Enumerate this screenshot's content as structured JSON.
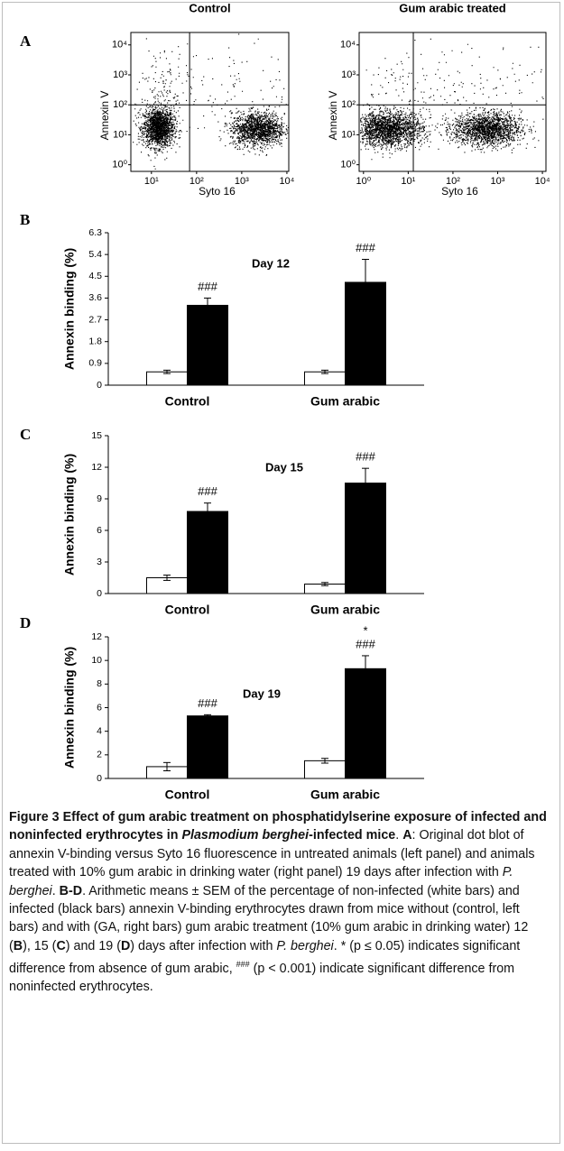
{
  "panel_labels": [
    "A",
    "B",
    "C",
    "D"
  ],
  "chart_data": [
    {
      "type": "dotplot",
      "title": "Control",
      "xlabel": "Syto 16",
      "ylabel": "Annexin V",
      "log": true,
      "xlim": [
        3.5,
        11000
      ],
      "ylim": [
        0.6,
        26000
      ],
      "xticks": [
        {
          "value": 10,
          "label": "10¹"
        },
        {
          "value": 100,
          "label": "10²"
        },
        {
          "value": 1000,
          "label": "10³"
        },
        {
          "value": 10000,
          "label": "10⁴"
        }
      ],
      "yticks": [
        {
          "value": 1,
          "label": "10⁰"
        },
        {
          "value": 10,
          "label": "10¹"
        },
        {
          "value": 100,
          "label": "10²"
        },
        {
          "value": 1000,
          "label": "10³"
        },
        {
          "value": 10000,
          "label": "10⁴"
        }
      ],
      "gate_x": 70,
      "gate_y": 100,
      "color": "#000000"
    },
    {
      "type": "dotplot",
      "title": "Gum arabic treated",
      "xlabel": "Syto 16",
      "ylabel": "Annexin V",
      "log": true,
      "xlim": [
        0.8,
        12000
      ],
      "ylim": [
        0.6,
        26000
      ],
      "xticks": [
        {
          "value": 1,
          "label": "10⁰"
        },
        {
          "value": 10,
          "label": "10¹"
        },
        {
          "value": 100,
          "label": "10²"
        },
        {
          "value": 1000,
          "label": "10³"
        },
        {
          "value": 10000,
          "label": "10⁴"
        }
      ],
      "yticks": [
        {
          "value": 1,
          "label": "10⁰"
        },
        {
          "value": 10,
          "label": "10¹"
        },
        {
          "value": 100,
          "label": "10²"
        },
        {
          "value": 1000,
          "label": "10³"
        },
        {
          "value": 10000,
          "label": "10⁴"
        }
      ],
      "gate_x": 13,
      "gate_y": 100,
      "color": "#000000"
    },
    {
      "type": "bar",
      "subtitle": "Day 12",
      "ylabel": "Annexin binding (%)",
      "categories": [
        "Control",
        "Gum arabic"
      ],
      "series": [
        {
          "color": "#ffffff",
          "values": [
            0.55,
            0.55
          ],
          "errors": [
            0.07,
            0.07
          ]
        },
        {
          "color": "#000000",
          "values": [
            3.3,
            4.25
          ],
          "errors": [
            0.3,
            0.95
          ]
        }
      ],
      "ylim": [
        0,
        6.3
      ],
      "yticks": [
        0,
        0.9,
        1.8,
        2.7,
        3.6,
        4.5,
        5.4,
        6.3
      ],
      "annotations": [
        {
          "text": "###",
          "series": 1,
          "index": 0
        },
        {
          "text": "###",
          "series": 1,
          "index": 1
        }
      ]
    },
    {
      "type": "bar",
      "subtitle": "Day 15",
      "ylabel": "Annexin binding (%)",
      "categories": [
        "Control",
        "Gum arabic"
      ],
      "series": [
        {
          "color": "#ffffff",
          "values": [
            1.5,
            0.9
          ],
          "errors": [
            0.25,
            0.15
          ]
        },
        {
          "color": "#000000",
          "values": [
            7.8,
            10.5
          ],
          "errors": [
            0.8,
            1.4
          ]
        }
      ],
      "ylim": [
        0,
        15
      ],
      "yticks": [
        0,
        3,
        6,
        9,
        12,
        15
      ],
      "annotations": [
        {
          "text": "###",
          "series": 1,
          "index": 0
        },
        {
          "text": "###",
          "series": 1,
          "index": 1
        }
      ]
    },
    {
      "type": "bar",
      "subtitle": "Day 19",
      "ylabel": "Annexin binding (%)",
      "categories": [
        "Control",
        "Gum arabic"
      ],
      "series": [
        {
          "color": "#ffffff",
          "values": [
            1.0,
            1.5
          ],
          "errors": [
            0.35,
            0.2
          ]
        },
        {
          "color": "#000000",
          "values": [
            5.3,
            9.3
          ],
          "errors": [
            0.1,
            1.1
          ]
        }
      ],
      "ylim": [
        0,
        12
      ],
      "yticks": [
        0,
        2,
        4,
        6,
        8,
        10,
        12
      ],
      "annotations": [
        {
          "text": "###",
          "series": 1,
          "index": 0
        },
        {
          "text": "###",
          "series": 1,
          "index": 1
        },
        {
          "text": "*",
          "series": 1,
          "index": 1
        }
      ]
    }
  ],
  "caption": {
    "runs": [
      {
        "text": "Figure 3 Effect of gum arabic treatment on phosphatidylserine exposure of infected and noninfected erythrocytes in ",
        "style": "b"
      },
      {
        "text": "Plasmodium berghei",
        "style": "bi"
      },
      {
        "text": "-infected mice",
        "style": "b"
      },
      {
        "text": ". ",
        "style": "n"
      },
      {
        "text": "A",
        "style": "b"
      },
      {
        "text": ": Original dot blot of annexin V-binding versus Syto 16 fluorescence in untreated animals (left panel) and animals treated with 10% gum arabic in drinking water (right panel) 19 days after infection with ",
        "style": "n"
      },
      {
        "text": "P. berghei",
        "style": "i"
      },
      {
        "text": ". ",
        "style": "n"
      },
      {
        "text": "B-D",
        "style": "b"
      },
      {
        "text": ". Arithmetic means ± SEM of the percentage of non-infected (white bars) and infected (black bars) annexin V-binding erythrocytes drawn from mice without (control, left bars) and with (GA, right bars) gum arabic treatment (10% gum arabic in drinking water) 12 (",
        "style": "n"
      },
      {
        "text": "B",
        "style": "b"
      },
      {
        "text": "), 15 (",
        "style": "n"
      },
      {
        "text": "C",
        "style": "b"
      },
      {
        "text": ") and 19 (",
        "style": "n"
      },
      {
        "text": "D",
        "style": "b"
      },
      {
        "text": ") days after infection with ",
        "style": "n"
      },
      {
        "text": "P. berghei",
        "style": "i"
      },
      {
        "text": ". * (p ≤ 0.05) indicates significant difference from absence of gum arabic, ",
        "style": "n"
      },
      {
        "text": "###",
        "style": "sup"
      },
      {
        "text": " (p < 0.001) indicate significant difference from noninfected erythrocytes.",
        "style": "n"
      }
    ]
  }
}
